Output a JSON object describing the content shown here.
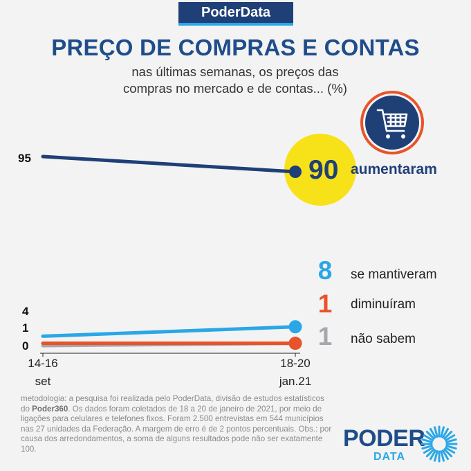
{
  "brand": "PoderData",
  "title": "PREÇO DE COMPRAS E CONTAS",
  "subtitle_line1": "nas últimas semanas, os preços das",
  "subtitle_line2": "compras no mercado e de contas... (%)",
  "colors": {
    "aumentaram": "#1f3f77",
    "se_mantiveram": "#2aa7e6",
    "diminuiram": "#e8532a",
    "nao_sabem": "#a5a9ae",
    "highlight_circle": "#f7e21a",
    "cart_circle": "#1f3f77",
    "cart_ring": "#e8532a"
  },
  "icons": [
    "shopping-cart-icon"
  ],
  "chart_data": {
    "type": "line",
    "categories": [
      "14-16 set",
      "18-20 jan.21"
    ],
    "x_labels": [
      [
        "14-16",
        "set"
      ],
      [
        "18-20",
        "jan.21"
      ]
    ],
    "series": [
      {
        "name": "aumentaram",
        "values": [
          95,
          90
        ]
      },
      {
        "name": "se mantiveram",
        "values": [
          4,
          8
        ]
      },
      {
        "name": "diminuíram",
        "values": [
          1,
          1
        ]
      },
      {
        "name": "não sabem",
        "values": [
          0,
          1
        ]
      }
    ],
    "start_labels": [
      "95",
      "4",
      "1",
      "0"
    ],
    "end_labels": [
      "90",
      "8",
      "1",
      "1"
    ],
    "grid": false
  },
  "methodology_prefix": "metodologia: a pesquisa foi realizada pelo PoderData, divisão de estudos estatísticos do ",
  "methodology_brand": "Poder360",
  "methodology_suffix": ". Os dados foram coletados de 18 a 20 de janeiro de 2021, por meio de ligações para celulares e telefones fixos. Foram 2.500 entrevistas em 544 municípios nas 27 unidades da Federação. A margem de erro é de 2 pontos percentuais. Obs.: por causa dos arredondamentos, a soma de alguns resultados pode não ser exatamente 100.",
  "logo": {
    "top": "PODER",
    "bottom": "DATA"
  }
}
